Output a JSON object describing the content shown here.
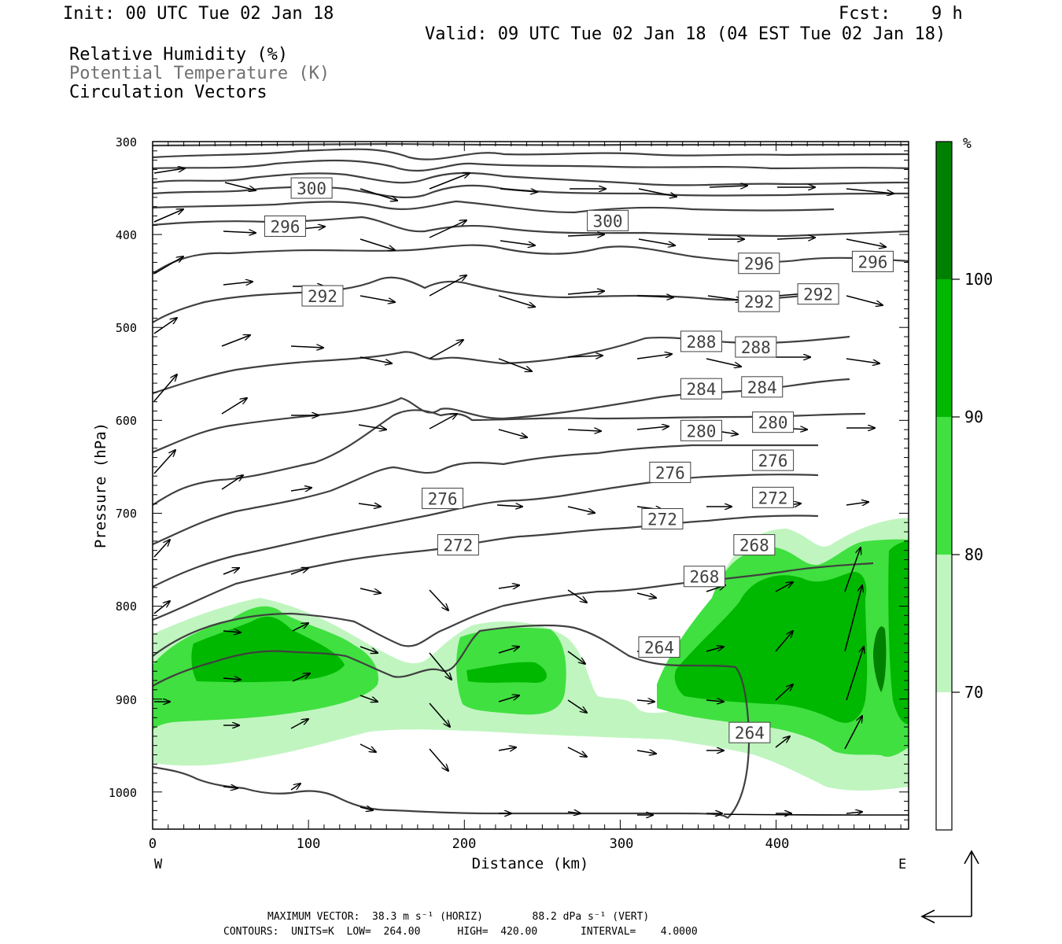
{
  "header": {
    "init": "Init: 00 UTC Tue 02 Jan 18",
    "fcst_label": "Fcst:",
    "fcst_value": "9 h",
    "valid": "Valid: 09 UTC Tue 02 Jan 18 (04 EST Tue 02 Jan 18)"
  },
  "legend": {
    "line1": "Relative Humidity (%)",
    "line2": "Potential Temperature (K)",
    "line3": "Circulation Vectors"
  },
  "footer": {
    "max_vector": "MAXIMUM VECTOR:  38.3 m s⁻¹ (HORIZ)        88.2 dPa s⁻¹ (VERT)",
    "contours": "CONTOURS:  UNITS=K  LOW=  264.00      HIGH=  420.00       INTERVAL=    4.0000"
  },
  "colors": {
    "rh70": "#c0f5c0",
    "rh80": "#40e040",
    "rh90": "#00b800",
    "rh100": "#008000",
    "theta": "#404040"
  },
  "chart_data": {
    "type": "cross-section",
    "xlabel": "Distance (km)",
    "ylabel": "Pressure (hPa)",
    "xlim": [
      0,
      485
    ],
    "ylim": [
      1040,
      300
    ],
    "x_ticks": [
      "0",
      "100",
      "200",
      "300",
      "400"
    ],
    "y_ticks": [
      "300",
      "400",
      "500",
      "600",
      "700",
      "800",
      "900",
      "1000"
    ],
    "x_end_labels": {
      "left": "W",
      "right": "E"
    },
    "colorbar": {
      "unit": "%",
      "levels": [
        "70",
        "80",
        "90",
        "100"
      ]
    },
    "theta_labels": [
      {
        "text": "300",
        "x": 102,
        "p": 350
      },
      {
        "text": "296",
        "x": 85,
        "p": 391
      },
      {
        "text": "300",
        "x": 292,
        "p": 385
      },
      {
        "text": "296",
        "x": 389,
        "p": 431
      },
      {
        "text": "296",
        "x": 462,
        "p": 429
      },
      {
        "text": "292",
        "x": 109,
        "p": 466
      },
      {
        "text": "292",
        "x": 389,
        "p": 472
      },
      {
        "text": "292",
        "x": 427,
        "p": 464
      },
      {
        "text": "288",
        "x": 352,
        "p": 515
      },
      {
        "text": "288",
        "x": 387,
        "p": 521
      },
      {
        "text": "284",
        "x": 352,
        "p": 566
      },
      {
        "text": "284",
        "x": 391,
        "p": 564
      },
      {
        "text": "280",
        "x": 352,
        "p": 611
      },
      {
        "text": "280",
        "x": 398,
        "p": 602
      },
      {
        "text": "276",
        "x": 332,
        "p": 656
      },
      {
        "text": "276",
        "x": 398,
        "p": 643
      },
      {
        "text": "276",
        "x": 186,
        "p": 684
      },
      {
        "text": "272",
        "x": 398,
        "p": 683
      },
      {
        "text": "272",
        "x": 327,
        "p": 706
      },
      {
        "text": "272",
        "x": 196,
        "p": 734
      },
      {
        "text": "268",
        "x": 386,
        "p": 734
      },
      {
        "text": "268",
        "x": 354,
        "p": 768
      },
      {
        "text": "264",
        "x": 325,
        "p": 844
      },
      {
        "text": "264",
        "x": 383,
        "p": 936
      }
    ]
  }
}
